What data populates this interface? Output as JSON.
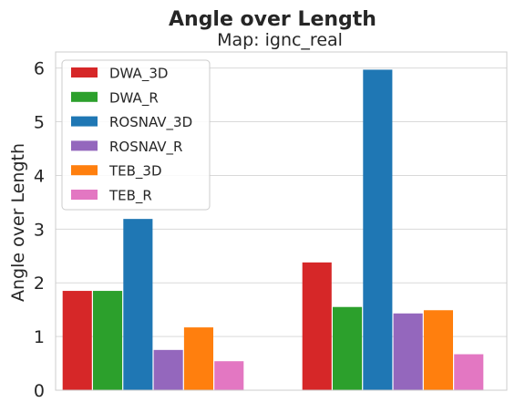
{
  "chart_data": {
    "type": "bar",
    "title": "Angle over Length",
    "subtitle": "Map: ignc_real",
    "xlabel": "",
    "ylabel": "Angle over Length",
    "ylim": [
      0,
      6.3
    ],
    "yticks": [
      0,
      1,
      2,
      3,
      4,
      5,
      6
    ],
    "categories": [
      "",
      ""
    ],
    "grid": true,
    "legend_position": "top-left",
    "series": [
      {
        "name": "DWA_3D",
        "color": "#d62728",
        "values": [
          1.85,
          2.38
        ]
      },
      {
        "name": "DWA_R",
        "color": "#2ca02c",
        "values": [
          1.85,
          1.55
        ]
      },
      {
        "name": "ROSNAV_3D",
        "color": "#1f77b4",
        "values": [
          3.19,
          5.97
        ]
      },
      {
        "name": "ROSNAV_R",
        "color": "#9467bd",
        "values": [
          0.75,
          1.43
        ]
      },
      {
        "name": "TEB_3D",
        "color": "#ff7f0e",
        "values": [
          1.17,
          1.49
        ]
      },
      {
        "name": "TEB_R",
        "color": "#e377c2",
        "values": [
          0.54,
          0.67
        ]
      }
    ]
  }
}
